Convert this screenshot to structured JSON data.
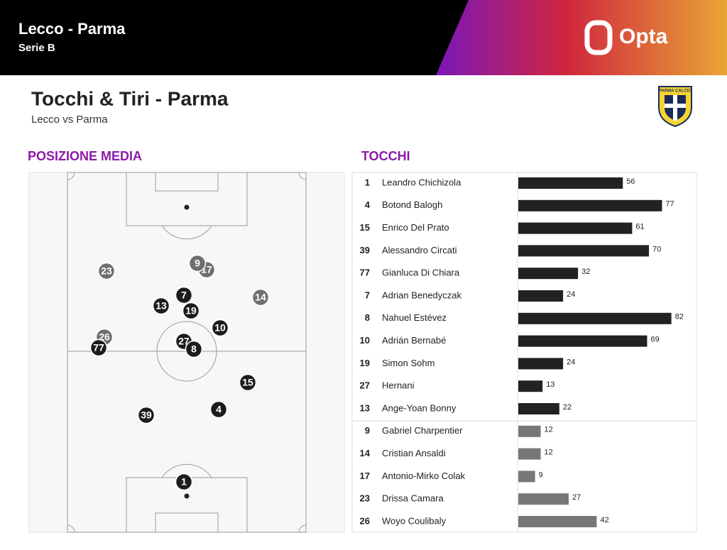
{
  "header": {
    "title": "Lecco - Parma",
    "subtitle": "Serie B",
    "brand": "Opta"
  },
  "heading": {
    "title": "Tocchi & Tiri - Parma",
    "subtitle": "Lecco vs Parma",
    "badge": "PARMA CALCIO"
  },
  "pitch": {
    "title": "POSIZIONE MEDIA",
    "players": [
      1,
      4,
      15,
      39,
      77,
      7,
      8,
      10,
      19,
      27,
      13,
      9,
      14,
      17,
      23,
      26
    ]
  },
  "chart_data": {
    "type": "bar",
    "title": "TOCCHI",
    "numbers": [
      1,
      4,
      15,
      39,
      77,
      7,
      8,
      10,
      19,
      27,
      13,
      9,
      14,
      17,
      23,
      26
    ],
    "categories": [
      "Leandro Chichizola",
      "Botond Balogh",
      "Enrico Del Prato",
      "Alessandro Circati",
      "Gianluca Di Chiara",
      "Adrian Benedyczak",
      "Nahuel Estévez",
      "Adrián Bernabé",
      "Simon Sohm",
      "Hernani",
      "Ange-Yoan Bonny",
      "Gabriel Charpentier",
      "Cristian Ansaldi",
      "Antonio-Mirko Colak",
      "Drissa Camara",
      "Woyo Coulibaly"
    ],
    "values": [
      56,
      77,
      61,
      70,
      32,
      24,
      82,
      69,
      24,
      13,
      22,
      12,
      12,
      9,
      27,
      42
    ],
    "colors": [
      "#222222",
      "#222222",
      "#222222",
      "#222222",
      "#222222",
      "#222222",
      "#222222",
      "#222222",
      "#222222",
      "#222222",
      "#222222",
      "#777777",
      "#777777",
      "#777777",
      "#777777",
      "#777777"
    ]
  }
}
